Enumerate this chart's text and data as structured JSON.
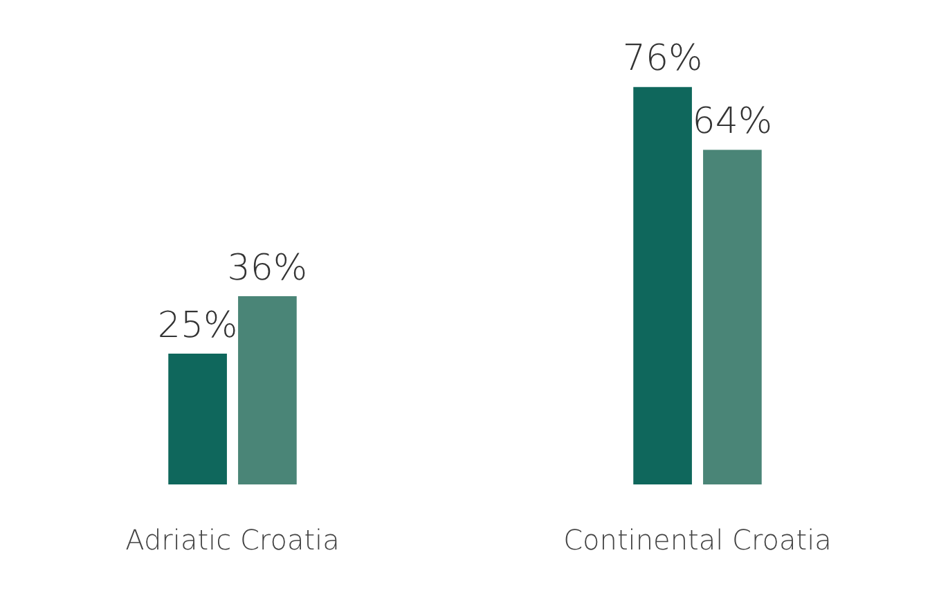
{
  "chart_data": {
    "type": "bar",
    "categories": [
      "Adriatic Croatia",
      "Continental Croatia"
    ],
    "series": [
      {
        "color": "#0f675c",
        "values": [
          25,
          76
        ],
        "value_labels": [
          "25%",
          "76%"
        ]
      },
      {
        "color": "#4a8577",
        "values": [
          36,
          64
        ],
        "value_labels": [
          "36%",
          "64%"
        ]
      }
    ],
    "legend": false,
    "grid": false
  }
}
